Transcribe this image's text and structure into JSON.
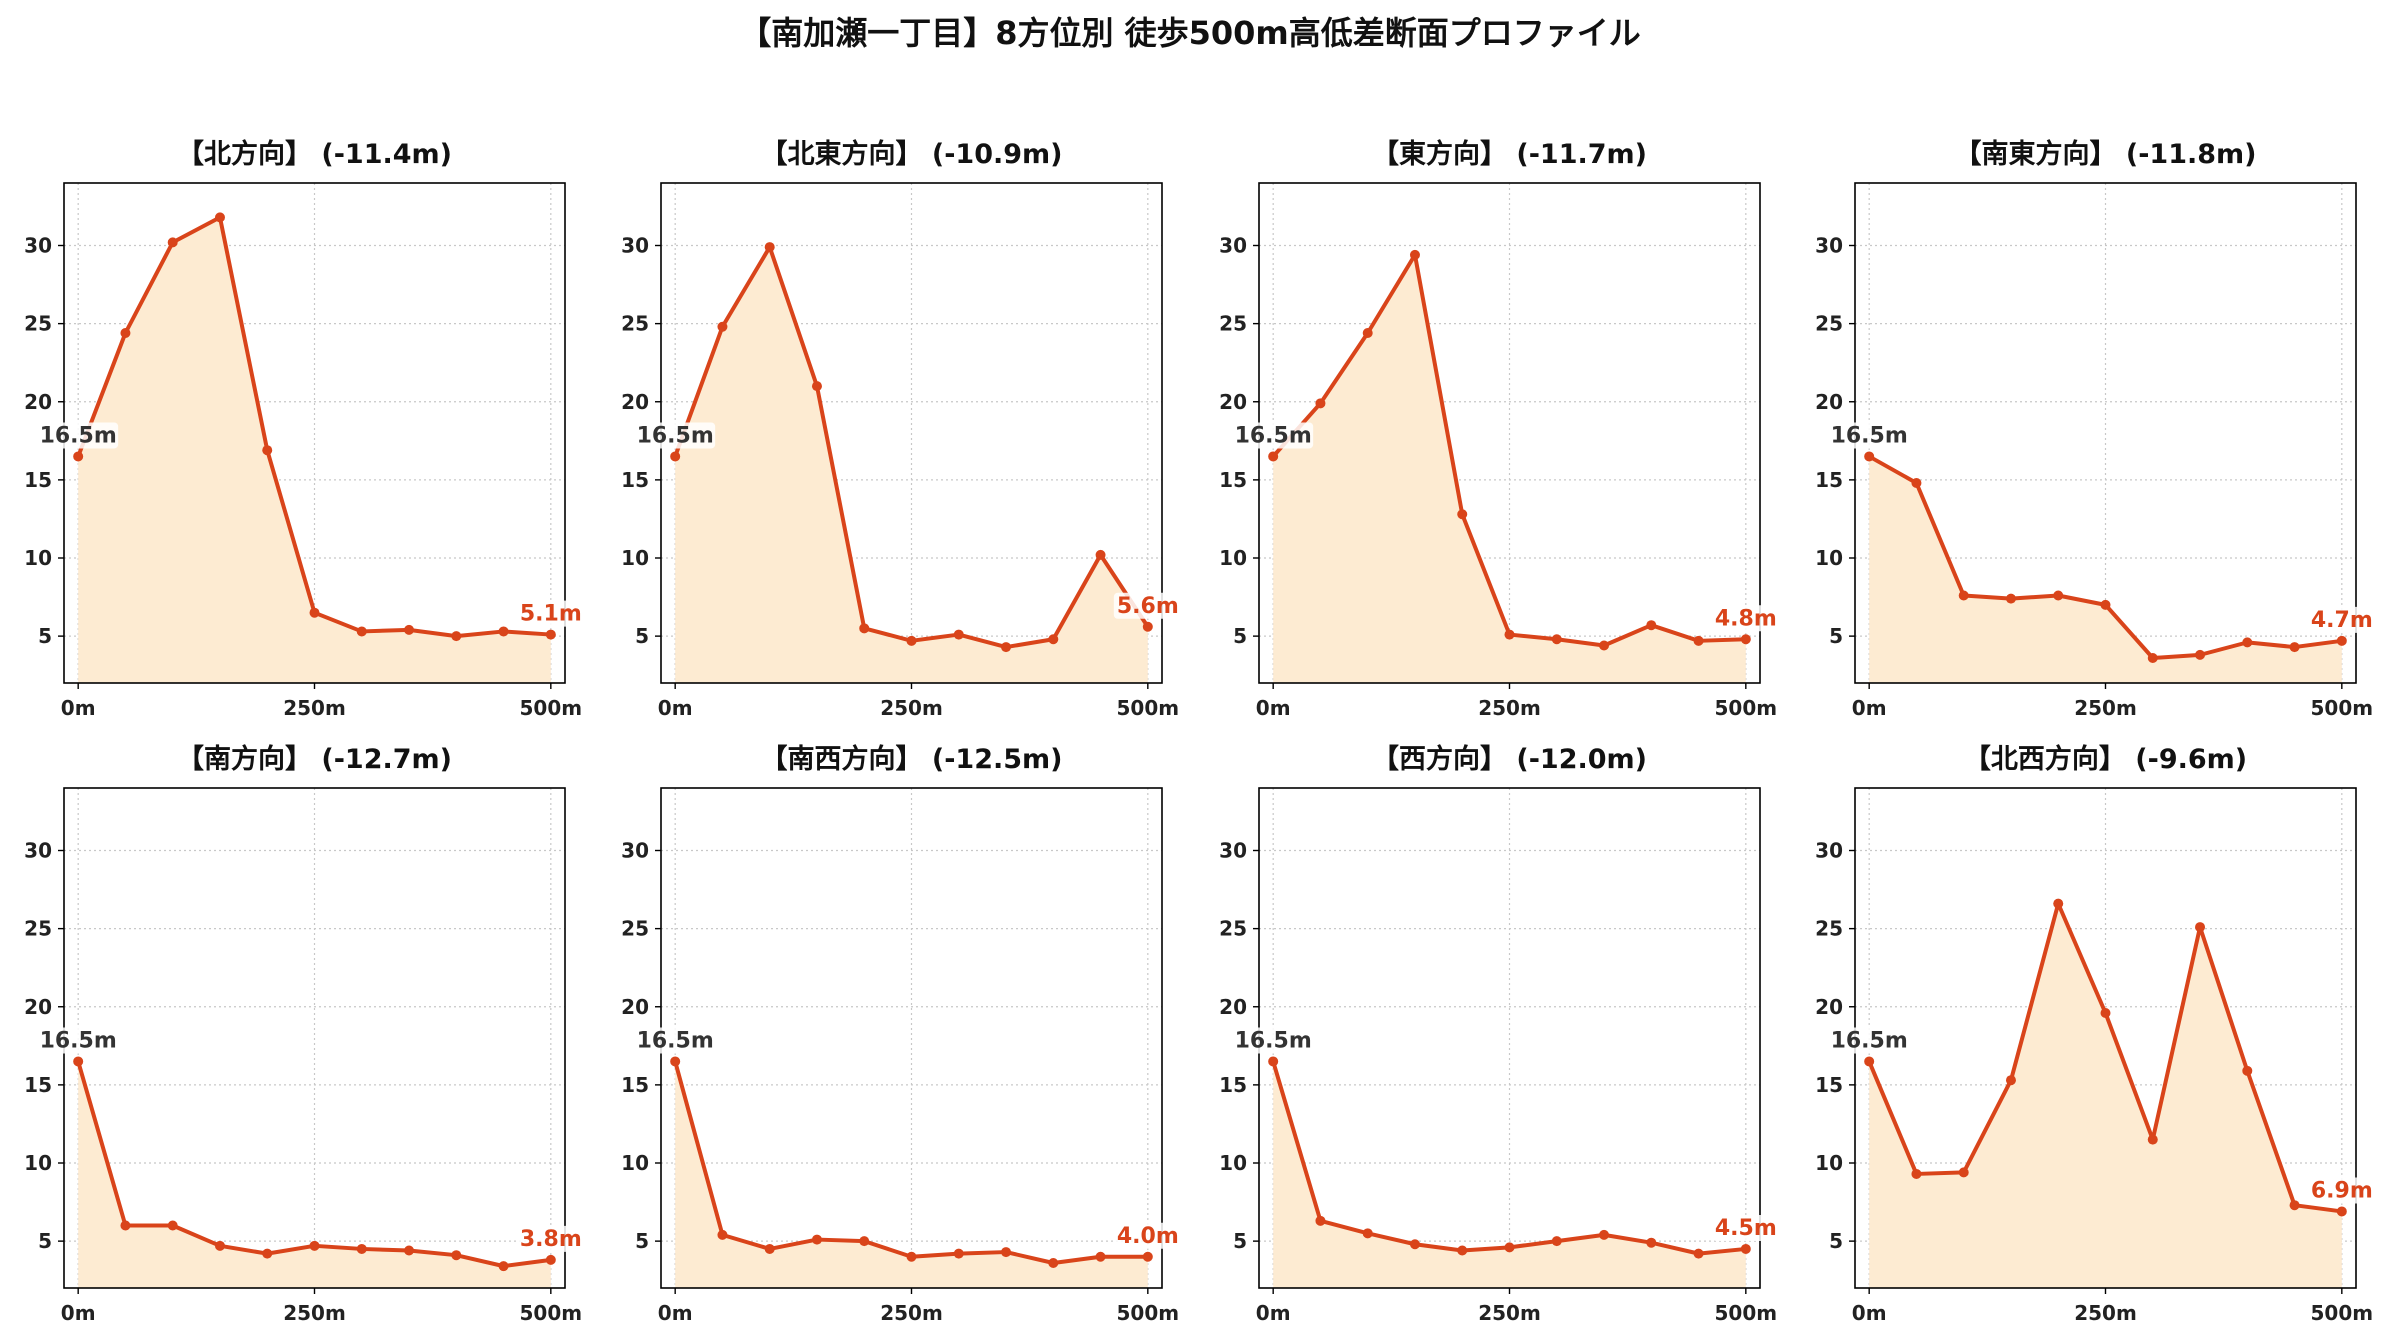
{
  "figure": {
    "title": "【南加瀬一丁目】8方位別 徒歩500m高低差断面プロファイル"
  },
  "colors": {
    "line": "#d9441a",
    "fill": "#fdebd2",
    "grid": "#c8c8c8",
    "start_label": "#333333",
    "end_label": "#d9441a"
  },
  "chart_data": [
    {
      "type": "area",
      "title": "【北方向】 (-11.4m)",
      "x": [
        0,
        50,
        100,
        150,
        200,
        250,
        300,
        350,
        400,
        450,
        500
      ],
      "values": [
        16.5,
        24.4,
        30.2,
        31.8,
        16.9,
        6.5,
        5.3,
        5.4,
        5.0,
        5.3,
        5.1
      ],
      "start_label": "16.5m",
      "end_label": "5.1m",
      "x_ticks": [
        {
          "v": 0,
          "label": "0m"
        },
        {
          "v": 250,
          "label": "250m"
        },
        {
          "v": 500,
          "label": "500m"
        }
      ],
      "y_ticks": [
        5,
        10,
        15,
        20,
        25,
        30
      ],
      "xlim": [
        -15,
        515
      ],
      "ylim": [
        2,
        34
      ],
      "grid": true
    },
    {
      "type": "area",
      "title": "【北東方向】 (-10.9m)",
      "x": [
        0,
        50,
        100,
        150,
        200,
        250,
        300,
        350,
        400,
        450,
        500
      ],
      "values": [
        16.5,
        24.8,
        29.9,
        21.0,
        5.5,
        4.7,
        5.1,
        4.3,
        4.8,
        10.2,
        5.6
      ],
      "start_label": "16.5m",
      "end_label": "5.6m",
      "x_ticks": [
        {
          "v": 0,
          "label": "0m"
        },
        {
          "v": 250,
          "label": "250m"
        },
        {
          "v": 500,
          "label": "500m"
        }
      ],
      "y_ticks": [
        5,
        10,
        15,
        20,
        25,
        30
      ],
      "xlim": [
        -15,
        515
      ],
      "ylim": [
        2,
        34
      ],
      "grid": true
    },
    {
      "type": "area",
      "title": "【東方向】 (-11.7m)",
      "x": [
        0,
        50,
        100,
        150,
        200,
        250,
        300,
        350,
        400,
        450,
        500
      ],
      "values": [
        16.5,
        19.9,
        24.4,
        29.4,
        12.8,
        5.1,
        4.8,
        4.4,
        5.7,
        4.7,
        4.8
      ],
      "start_label": "16.5m",
      "end_label": "4.8m",
      "x_ticks": [
        {
          "v": 0,
          "label": "0m"
        },
        {
          "v": 250,
          "label": "250m"
        },
        {
          "v": 500,
          "label": "500m"
        }
      ],
      "y_ticks": [
        5,
        10,
        15,
        20,
        25,
        30
      ],
      "xlim": [
        -15,
        515
      ],
      "ylim": [
        2,
        34
      ],
      "grid": true
    },
    {
      "type": "area",
      "title": "【南東方向】 (-11.8m)",
      "x": [
        0,
        50,
        100,
        150,
        200,
        250,
        300,
        350,
        400,
        450,
        500
      ],
      "values": [
        16.5,
        14.8,
        7.6,
        7.4,
        7.6,
        7.0,
        3.6,
        3.8,
        4.6,
        4.3,
        4.7
      ],
      "start_label": "16.5m",
      "end_label": "4.7m",
      "x_ticks": [
        {
          "v": 0,
          "label": "0m"
        },
        {
          "v": 250,
          "label": "250m"
        },
        {
          "v": 500,
          "label": "500m"
        }
      ],
      "y_ticks": [
        5,
        10,
        15,
        20,
        25,
        30
      ],
      "xlim": [
        -15,
        515
      ],
      "ylim": [
        2,
        34
      ],
      "grid": true
    },
    {
      "type": "area",
      "title": "【南方向】 (-12.7m)",
      "x": [
        0,
        50,
        100,
        150,
        200,
        250,
        300,
        350,
        400,
        450,
        500
      ],
      "values": [
        16.5,
        6.0,
        6.0,
        4.7,
        4.2,
        4.7,
        4.5,
        4.4,
        4.1,
        3.4,
        3.8
      ],
      "start_label": "16.5m",
      "end_label": "3.8m",
      "x_ticks": [
        {
          "v": 0,
          "label": "0m"
        },
        {
          "v": 250,
          "label": "250m"
        },
        {
          "v": 500,
          "label": "500m"
        }
      ],
      "y_ticks": [
        5,
        10,
        15,
        20,
        25,
        30
      ],
      "xlim": [
        -15,
        515
      ],
      "ylim": [
        2,
        34
      ],
      "grid": true
    },
    {
      "type": "area",
      "title": "【南西方向】 (-12.5m)",
      "x": [
        0,
        50,
        100,
        150,
        200,
        250,
        300,
        350,
        400,
        450,
        500
      ],
      "values": [
        16.5,
        5.4,
        4.5,
        5.1,
        5.0,
        4.0,
        4.2,
        4.3,
        3.6,
        4.0,
        4.0
      ],
      "start_label": "16.5m",
      "end_label": "4.0m",
      "x_ticks": [
        {
          "v": 0,
          "label": "0m"
        },
        {
          "v": 250,
          "label": "250m"
        },
        {
          "v": 500,
          "label": "500m"
        }
      ],
      "y_ticks": [
        5,
        10,
        15,
        20,
        25,
        30
      ],
      "xlim": [
        -15,
        515
      ],
      "ylim": [
        2,
        34
      ],
      "grid": true
    },
    {
      "type": "area",
      "title": "【西方向】 (-12.0m)",
      "x": [
        0,
        50,
        100,
        150,
        200,
        250,
        300,
        350,
        400,
        450,
        500
      ],
      "values": [
        16.5,
        6.3,
        5.5,
        4.8,
        4.4,
        4.6,
        5.0,
        5.4,
        4.9,
        4.2,
        4.5
      ],
      "start_label": "16.5m",
      "end_label": "4.5m",
      "x_ticks": [
        {
          "v": 0,
          "label": "0m"
        },
        {
          "v": 250,
          "label": "250m"
        },
        {
          "v": 500,
          "label": "500m"
        }
      ],
      "y_ticks": [
        5,
        10,
        15,
        20,
        25,
        30
      ],
      "xlim": [
        -15,
        515
      ],
      "ylim": [
        2,
        34
      ],
      "grid": true
    },
    {
      "type": "area",
      "title": "【北西方向】 (-9.6m)",
      "x": [
        0,
        50,
        100,
        150,
        200,
        250,
        300,
        350,
        400,
        450,
        500
      ],
      "values": [
        16.5,
        9.3,
        9.4,
        15.3,
        26.6,
        19.6,
        11.5,
        25.1,
        15.9,
        7.3,
        6.9
      ],
      "start_label": "16.5m",
      "end_label": "6.9m",
      "x_ticks": [
        {
          "v": 0,
          "label": "0m"
        },
        {
          "v": 250,
          "label": "250m"
        },
        {
          "v": 500,
          "label": "500m"
        }
      ],
      "y_ticks": [
        5,
        10,
        15,
        20,
        25,
        30
      ],
      "xlim": [
        -15,
        515
      ],
      "ylim": [
        2,
        34
      ],
      "grid": true
    }
  ]
}
